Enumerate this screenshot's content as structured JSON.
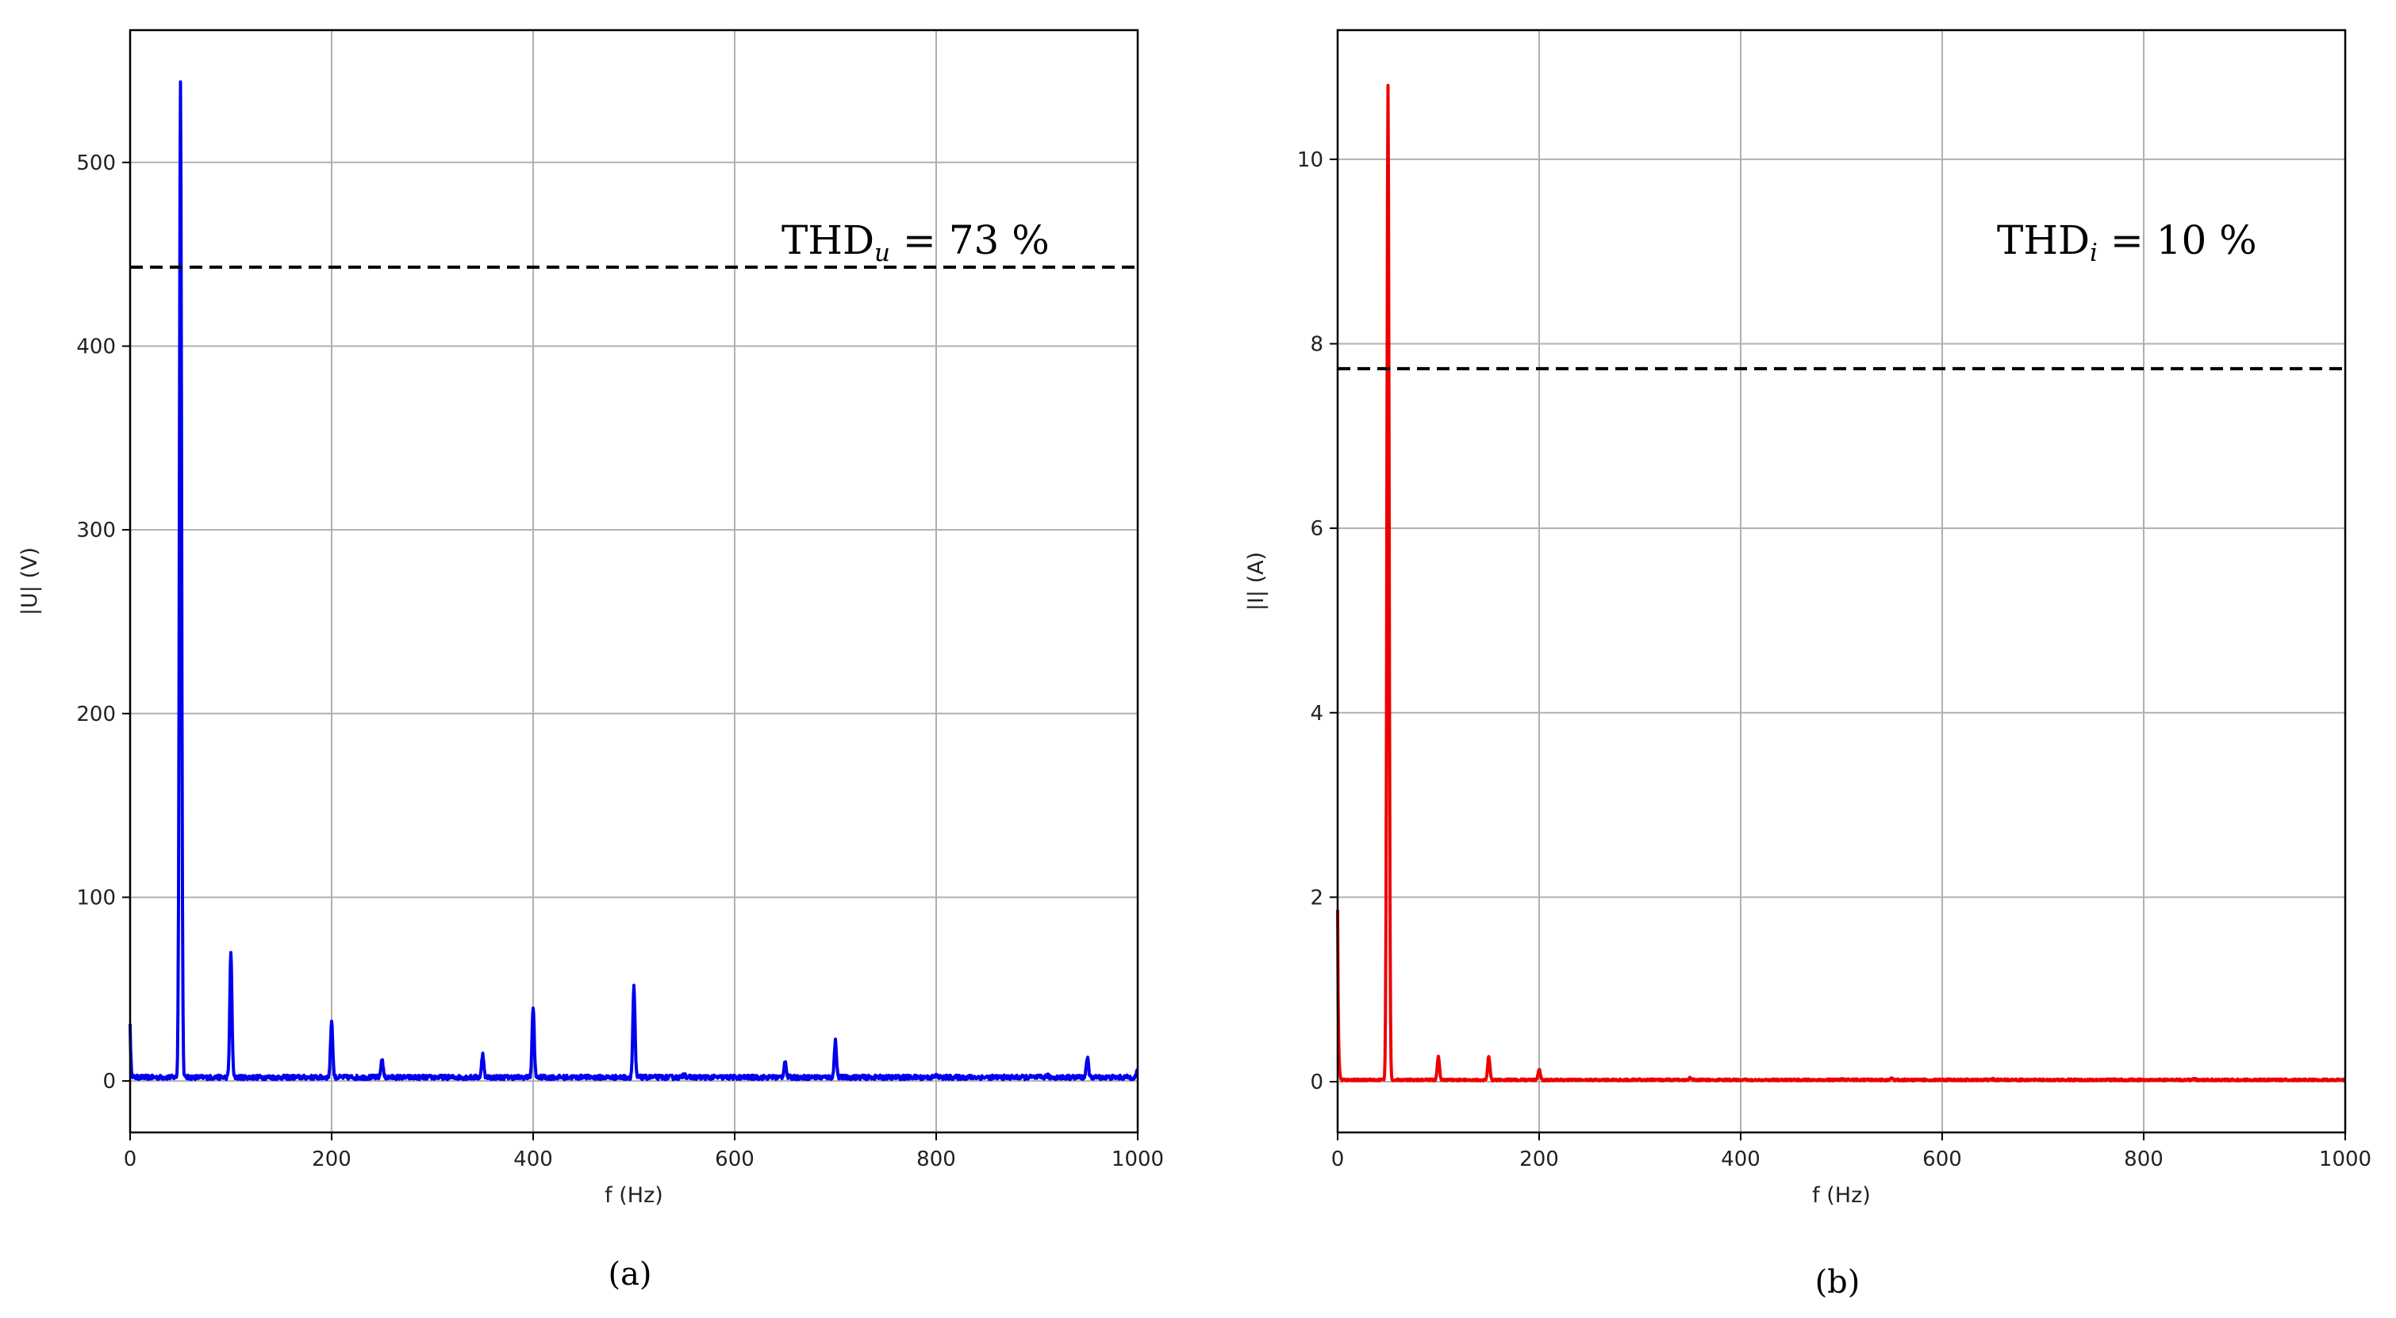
{
  "chart_data": [
    {
      "panel": "(a)",
      "type": "line",
      "xlabel": "f (Hz)",
      "ylabel": "|U| (V)",
      "xlim": [
        0,
        1000
      ],
      "ylim": [
        -28,
        572
      ],
      "xticks": [
        0,
        200,
        400,
        600,
        800,
        1000
      ],
      "yticks": [
        0,
        100,
        200,
        300,
        400,
        500
      ],
      "grid": true,
      "color": "#0000ee",
      "baseline": 2,
      "noise": 1.2,
      "dc": 30,
      "peaks": [
        [
          50,
          545
        ],
        [
          100,
          70
        ],
        [
          150,
          2
        ],
        [
          200,
          33
        ],
        [
          250,
          12
        ],
        [
          350,
          15
        ],
        [
          400,
          40
        ],
        [
          450,
          3
        ],
        [
          500,
          51
        ],
        [
          550,
          4
        ],
        [
          650,
          11
        ],
        [
          700,
          22
        ],
        [
          800,
          3
        ],
        [
          850,
          2
        ],
        [
          910,
          3
        ],
        [
          950,
          13
        ],
        [
          1000,
          6
        ]
      ],
      "threshold": 443,
      "annotation": {
        "main": "THD",
        "sub": "u",
        "rest": " = 73 %"
      }
    },
    {
      "panel": "(b)",
      "type": "line",
      "xlabel": "f (Hz)",
      "ylabel": "|I| (A)",
      "xlim": [
        0,
        1000
      ],
      "ylim": [
        -0.55,
        11.4
      ],
      "xticks": [
        0,
        200,
        400,
        600,
        800,
        1000
      ],
      "yticks": [
        0,
        2,
        4,
        6,
        8,
        10
      ],
      "grid": true,
      "color": "#ee0000",
      "baseline": 0.02,
      "noise": 0.01,
      "dc": 1.85,
      "peaks": [
        [
          50,
          10.8
        ],
        [
          100,
          0.27
        ],
        [
          150,
          0.28
        ],
        [
          200,
          0.14
        ],
        [
          350,
          0.05
        ],
        [
          450,
          0.02
        ],
        [
          500,
          0.03
        ],
        [
          550,
          0.04
        ],
        [
          650,
          0.03
        ],
        [
          850,
          0.03
        ],
        [
          950,
          0.02
        ]
      ],
      "threshold": 7.73,
      "annotation": {
        "main": "THD",
        "sub": "i",
        "rest": " = 10 %"
      }
    }
  ]
}
